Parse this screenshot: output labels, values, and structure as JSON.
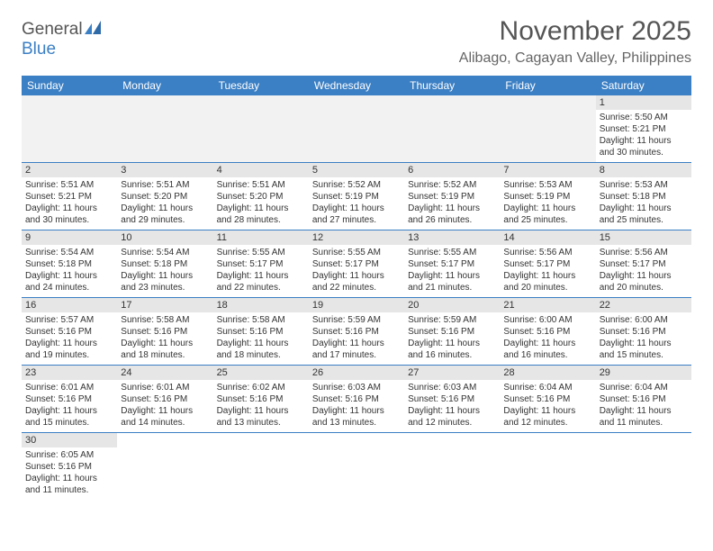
{
  "logo": {
    "text1": "General",
    "text2": "Blue"
  },
  "title": "November 2025",
  "location": "Alibago, Cagayan Valley, Philippines",
  "colors": {
    "header_bg": "#3b7fc4",
    "header_text": "#ffffff",
    "daynum_bg": "#e6e6e6",
    "blank_bg": "#f2f2f2",
    "border": "#3b7fc4",
    "title_color": "#555555",
    "location_color": "#666666"
  },
  "daysOfWeek": [
    "Sunday",
    "Monday",
    "Tuesday",
    "Wednesday",
    "Thursday",
    "Friday",
    "Saturday"
  ],
  "weeks": [
    [
      null,
      null,
      null,
      null,
      null,
      null,
      {
        "n": "1",
        "sunrise": "5:50 AM",
        "sunset": "5:21 PM",
        "daylight": "11 hours and 30 minutes."
      }
    ],
    [
      {
        "n": "2",
        "sunrise": "5:51 AM",
        "sunset": "5:21 PM",
        "daylight": "11 hours and 30 minutes."
      },
      {
        "n": "3",
        "sunrise": "5:51 AM",
        "sunset": "5:20 PM",
        "daylight": "11 hours and 29 minutes."
      },
      {
        "n": "4",
        "sunrise": "5:51 AM",
        "sunset": "5:20 PM",
        "daylight": "11 hours and 28 minutes."
      },
      {
        "n": "5",
        "sunrise": "5:52 AM",
        "sunset": "5:19 PM",
        "daylight": "11 hours and 27 minutes."
      },
      {
        "n": "6",
        "sunrise": "5:52 AM",
        "sunset": "5:19 PM",
        "daylight": "11 hours and 26 minutes."
      },
      {
        "n": "7",
        "sunrise": "5:53 AM",
        "sunset": "5:19 PM",
        "daylight": "11 hours and 25 minutes."
      },
      {
        "n": "8",
        "sunrise": "5:53 AM",
        "sunset": "5:18 PM",
        "daylight": "11 hours and 25 minutes."
      }
    ],
    [
      {
        "n": "9",
        "sunrise": "5:54 AM",
        "sunset": "5:18 PM",
        "daylight": "11 hours and 24 minutes."
      },
      {
        "n": "10",
        "sunrise": "5:54 AM",
        "sunset": "5:18 PM",
        "daylight": "11 hours and 23 minutes."
      },
      {
        "n": "11",
        "sunrise": "5:55 AM",
        "sunset": "5:17 PM",
        "daylight": "11 hours and 22 minutes."
      },
      {
        "n": "12",
        "sunrise": "5:55 AM",
        "sunset": "5:17 PM",
        "daylight": "11 hours and 22 minutes."
      },
      {
        "n": "13",
        "sunrise": "5:55 AM",
        "sunset": "5:17 PM",
        "daylight": "11 hours and 21 minutes."
      },
      {
        "n": "14",
        "sunrise": "5:56 AM",
        "sunset": "5:17 PM",
        "daylight": "11 hours and 20 minutes."
      },
      {
        "n": "15",
        "sunrise": "5:56 AM",
        "sunset": "5:17 PM",
        "daylight": "11 hours and 20 minutes."
      }
    ],
    [
      {
        "n": "16",
        "sunrise": "5:57 AM",
        "sunset": "5:16 PM",
        "daylight": "11 hours and 19 minutes."
      },
      {
        "n": "17",
        "sunrise": "5:58 AM",
        "sunset": "5:16 PM",
        "daylight": "11 hours and 18 minutes."
      },
      {
        "n": "18",
        "sunrise": "5:58 AM",
        "sunset": "5:16 PM",
        "daylight": "11 hours and 18 minutes."
      },
      {
        "n": "19",
        "sunrise": "5:59 AM",
        "sunset": "5:16 PM",
        "daylight": "11 hours and 17 minutes."
      },
      {
        "n": "20",
        "sunrise": "5:59 AM",
        "sunset": "5:16 PM",
        "daylight": "11 hours and 16 minutes."
      },
      {
        "n": "21",
        "sunrise": "6:00 AM",
        "sunset": "5:16 PM",
        "daylight": "11 hours and 16 minutes."
      },
      {
        "n": "22",
        "sunrise": "6:00 AM",
        "sunset": "5:16 PM",
        "daylight": "11 hours and 15 minutes."
      }
    ],
    [
      {
        "n": "23",
        "sunrise": "6:01 AM",
        "sunset": "5:16 PM",
        "daylight": "11 hours and 15 minutes."
      },
      {
        "n": "24",
        "sunrise": "6:01 AM",
        "sunset": "5:16 PM",
        "daylight": "11 hours and 14 minutes."
      },
      {
        "n": "25",
        "sunrise": "6:02 AM",
        "sunset": "5:16 PM",
        "daylight": "11 hours and 13 minutes."
      },
      {
        "n": "26",
        "sunrise": "6:03 AM",
        "sunset": "5:16 PM",
        "daylight": "11 hours and 13 minutes."
      },
      {
        "n": "27",
        "sunrise": "6:03 AM",
        "sunset": "5:16 PM",
        "daylight": "11 hours and 12 minutes."
      },
      {
        "n": "28",
        "sunrise": "6:04 AM",
        "sunset": "5:16 PM",
        "daylight": "11 hours and 12 minutes."
      },
      {
        "n": "29",
        "sunrise": "6:04 AM",
        "sunset": "5:16 PM",
        "daylight": "11 hours and 11 minutes."
      }
    ],
    [
      {
        "n": "30",
        "sunrise": "6:05 AM",
        "sunset": "5:16 PM",
        "daylight": "11 hours and 11 minutes."
      },
      null,
      null,
      null,
      null,
      null,
      null
    ]
  ],
  "labels": {
    "sunrise": "Sunrise:",
    "sunset": "Sunset:",
    "daylight": "Daylight:"
  }
}
